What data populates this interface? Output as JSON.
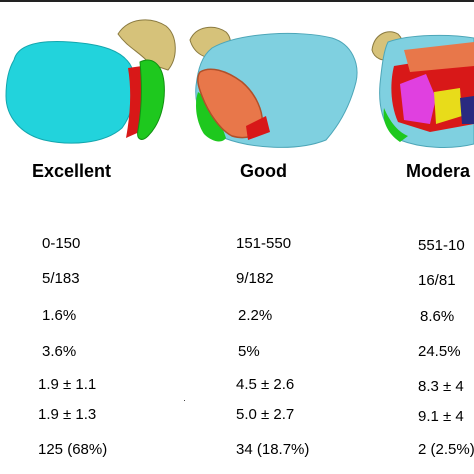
{
  "columns": [
    {
      "header": "Excellent",
      "values": [
        "0-150",
        "5/183",
        "1.6%",
        "3.6%",
        "1.9 ± 1.1",
        "1.9 ± 1.3",
        "125 (68%)"
      ]
    },
    {
      "header": "Good",
      "values": [
        "151-550",
        "9/182",
        "2.2%",
        "5%",
        "4.5 ± 2.6",
        "5.0 ±  2.7",
        "34 (18.7%)"
      ]
    },
    {
      "header": "Modera",
      "values": [
        "551-10",
        "16/81",
        "8.6%",
        "24.5%",
        "8.3 ± 4",
        "9.1 ± 4",
        "2 (2.5%)"
      ]
    }
  ],
  "colors": {
    "cyan": "#22d3dc",
    "green": "#1ec81e",
    "red": "#d81818",
    "tan": "#d6c27a",
    "light_blue": "#7fd0e0",
    "orange": "#e8774a",
    "magenta": "#e040e0",
    "yellow": "#e8dc1a"
  }
}
